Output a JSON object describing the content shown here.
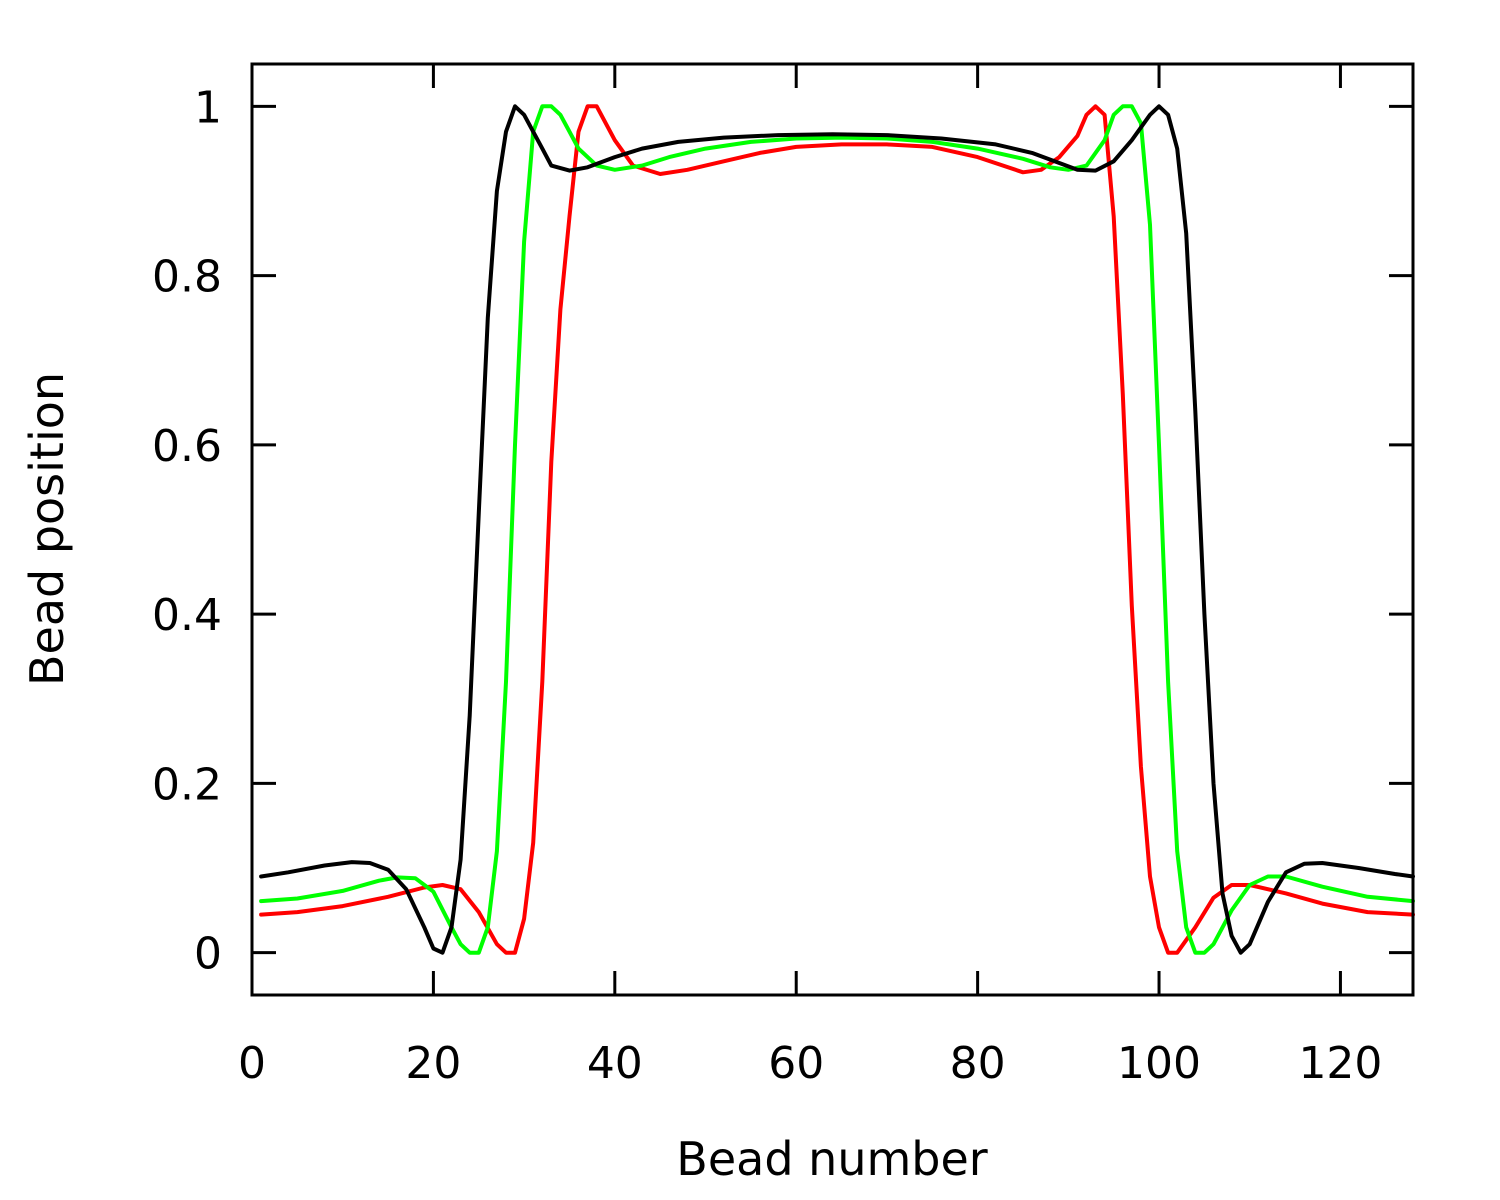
{
  "chart_data": {
    "type": "line",
    "title": "",
    "xlabel": "Bead number",
    "ylabel": "Bead position",
    "xlim": [
      0,
      128
    ],
    "ylim": [
      -0.05,
      1.05
    ],
    "xticks": [
      0,
      20,
      40,
      60,
      80,
      100,
      120
    ],
    "yticks": [
      0,
      0.2,
      0.4,
      0.6,
      0.8,
      1
    ],
    "xtick_labels": [
      "0",
      "20",
      "40",
      "60",
      "80",
      "100",
      "120"
    ],
    "ytick_labels": [
      "0",
      "0.2",
      "0.4",
      "0.6",
      "0.8",
      "1"
    ],
    "grid": false,
    "legend": "none",
    "series": [
      {
        "color": "#ff0000",
        "x": [
          1,
          5,
          10,
          15,
          19,
          21,
          23,
          25,
          27,
          28,
          29,
          30,
          31,
          32,
          33,
          34,
          35,
          36,
          37,
          38,
          40,
          42,
          45,
          48,
          52,
          56,
          60,
          65,
          70,
          75,
          80,
          85,
          87,
          89,
          91,
          92,
          93,
          94,
          95,
          96,
          97,
          98,
          99,
          100,
          101,
          102,
          104,
          106,
          108,
          110,
          114,
          118,
          123,
          128
        ],
        "y": [
          0.045,
          0.048,
          0.055,
          0.066,
          0.077,
          0.08,
          0.075,
          0.048,
          0.01,
          0.0,
          0.0,
          0.04,
          0.13,
          0.32,
          0.58,
          0.76,
          0.87,
          0.97,
          1.0,
          1.0,
          0.96,
          0.93,
          0.92,
          0.925,
          0.935,
          0.945,
          0.952,
          0.955,
          0.955,
          0.952,
          0.94,
          0.922,
          0.925,
          0.94,
          0.965,
          0.99,
          1.0,
          0.99,
          0.87,
          0.66,
          0.41,
          0.22,
          0.09,
          0.03,
          0.0,
          0.0,
          0.03,
          0.065,
          0.08,
          0.08,
          0.07,
          0.058,
          0.048,
          0.045
        ]
      },
      {
        "color": "#00ff00",
        "x": [
          1,
          5,
          10,
          14,
          16,
          18,
          20,
          22,
          23,
          24,
          25,
          26,
          27,
          28,
          29,
          30,
          31,
          32,
          33,
          34,
          35,
          36,
          38,
          40,
          43,
          46,
          50,
          55,
          60,
          65,
          70,
          75,
          80,
          85,
          88,
          90,
          92,
          94,
          95,
          96,
          97,
          98,
          99,
          100,
          101,
          102,
          103,
          104,
          105,
          106,
          108,
          110,
          112,
          114,
          118,
          123,
          128
        ],
        "y": [
          0.061,
          0.064,
          0.073,
          0.085,
          0.089,
          0.088,
          0.072,
          0.03,
          0.01,
          0.0,
          0.0,
          0.03,
          0.12,
          0.32,
          0.6,
          0.84,
          0.97,
          1.0,
          1.0,
          0.99,
          0.97,
          0.95,
          0.93,
          0.925,
          0.93,
          0.94,
          0.95,
          0.958,
          0.962,
          0.963,
          0.962,
          0.958,
          0.95,
          0.938,
          0.928,
          0.925,
          0.93,
          0.96,
          0.99,
          1.0,
          1.0,
          0.98,
          0.86,
          0.6,
          0.32,
          0.12,
          0.03,
          0.0,
          0.0,
          0.01,
          0.05,
          0.08,
          0.09,
          0.09,
          0.078,
          0.066,
          0.061
        ]
      },
      {
        "color": "#000000",
        "x": [
          1,
          4,
          8,
          11,
          13,
          15,
          17,
          19,
          20,
          21,
          22,
          23,
          24,
          25,
          26,
          27,
          28,
          29,
          30,
          31,
          32,
          33,
          35,
          37,
          40,
          43,
          47,
          52,
          58,
          64,
          70,
          76,
          82,
          86,
          89,
          91,
          93,
          95,
          97,
          99,
          100,
          101,
          102,
          103,
          104,
          105,
          106,
          107,
          108,
          109,
          110,
          112,
          114,
          116,
          118,
          122,
          126,
          128
        ],
        "y": [
          0.09,
          0.095,
          0.103,
          0.107,
          0.106,
          0.098,
          0.075,
          0.03,
          0.005,
          0.0,
          0.03,
          0.11,
          0.28,
          0.52,
          0.75,
          0.9,
          0.97,
          1.0,
          0.99,
          0.97,
          0.95,
          0.93,
          0.924,
          0.928,
          0.94,
          0.95,
          0.958,
          0.963,
          0.966,
          0.967,
          0.966,
          0.962,
          0.955,
          0.945,
          0.933,
          0.925,
          0.924,
          0.935,
          0.96,
          0.99,
          1.0,
          0.99,
          0.95,
          0.85,
          0.64,
          0.4,
          0.2,
          0.07,
          0.02,
          0.0,
          0.01,
          0.06,
          0.095,
          0.105,
          0.106,
          0.1,
          0.093,
          0.09
        ]
      }
    ]
  }
}
